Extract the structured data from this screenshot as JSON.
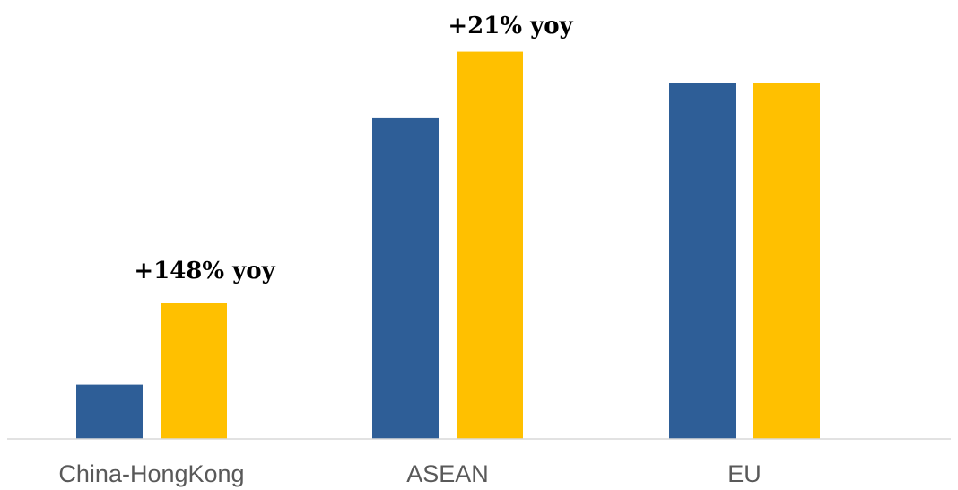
{
  "chart_data": {
    "type": "bar",
    "categories": [
      "China-HongKong",
      "ASEAN",
      "EU"
    ],
    "series": [
      {
        "values": [
          14,
          83,
          92
        ],
        "color": "#2E5E97"
      },
      {
        "values": [
          35,
          100,
          92
        ],
        "color": "#FFC000"
      }
    ],
    "ylim": [
      0,
      105
    ],
    "grid": false,
    "legend": "none",
    "annotations": [
      {
        "category_index": 0,
        "series_index": 1,
        "text": "+148% yoy"
      },
      {
        "category_index": 1,
        "series_index": 1,
        "text": "+21% yoy"
      }
    ],
    "axis_color": "#D9D9D9"
  }
}
